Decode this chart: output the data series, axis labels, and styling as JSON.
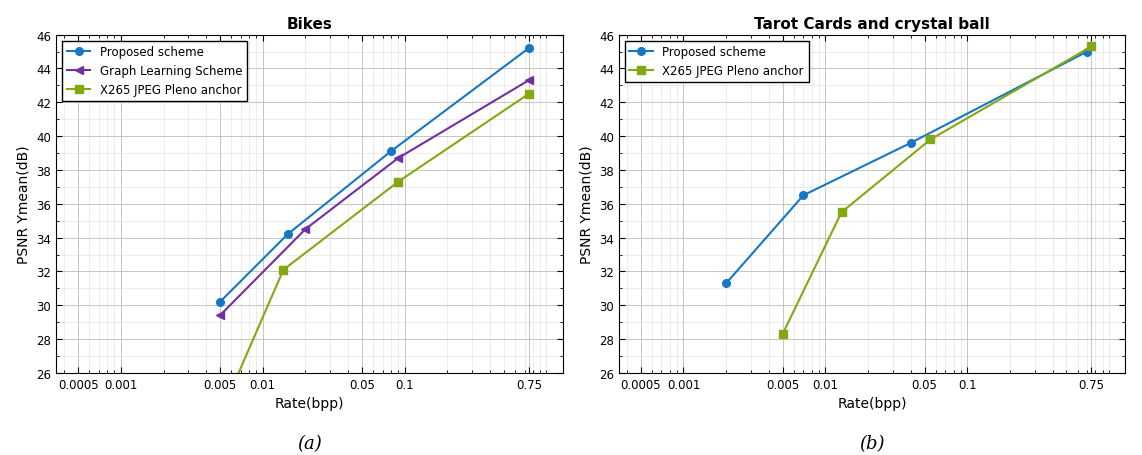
{
  "bikes": {
    "title": "Bikes",
    "proposed": {
      "x": [
        0.005,
        0.015,
        0.08,
        0.75
      ],
      "y": [
        30.2,
        34.2,
        39.1,
        45.2
      ],
      "color": "#1777C4",
      "marker": "o",
      "label": "Proposed scheme"
    },
    "graph": {
      "x": [
        0.005,
        0.02,
        0.09,
        0.75
      ],
      "y": [
        29.4,
        34.5,
        38.7,
        43.3
      ],
      "color": "#7030A0",
      "marker": "<",
      "label": "Graph Learning Scheme"
    },
    "jpeg": {
      "x": [
        0.006,
        0.014,
        0.09,
        0.75
      ],
      "y": [
        25.0,
        32.1,
        37.3,
        42.5
      ],
      "color": "#84A812",
      "marker": "s",
      "label": "X265 JPEG Pleno anchor"
    }
  },
  "tarot": {
    "title": "Tarot Cards and crystal ball",
    "proposed": {
      "x": [
        0.002,
        0.007,
        0.04,
        0.7
      ],
      "y": [
        31.3,
        36.5,
        39.6,
        45.0
      ],
      "color": "#1777C4",
      "marker": "o",
      "label": "Proposed scheme"
    },
    "jpeg": {
      "x": [
        0.005,
        0.013,
        0.055,
        0.75
      ],
      "y": [
        28.3,
        35.5,
        39.8,
        45.3
      ],
      "color": "#84A812",
      "marker": "s",
      "label": "X265 JPEG Pleno anchor"
    }
  },
  "xlim": [
    0.00035,
    1.3
  ],
  "ylim": [
    26,
    46
  ],
  "yticks": [
    26,
    28,
    30,
    32,
    34,
    36,
    38,
    40,
    42,
    44,
    46
  ],
  "xticks": [
    0.0005,
    0.001,
    0.005,
    0.01,
    0.05,
    0.1,
    0.75
  ],
  "xtick_labels": [
    "0.0005",
    "0.001",
    "0.005",
    "0.01",
    "0.05",
    "0.1",
    "0.75"
  ],
  "ylabel": "PSNR Ymean(dB)",
  "xlabel": "Rate(bpp)",
  "grid_major_color": "#bbbbbb",
  "grid_minor_color": "#dddddd",
  "fig_label_a": "(a)",
  "fig_label_b": "(b)"
}
